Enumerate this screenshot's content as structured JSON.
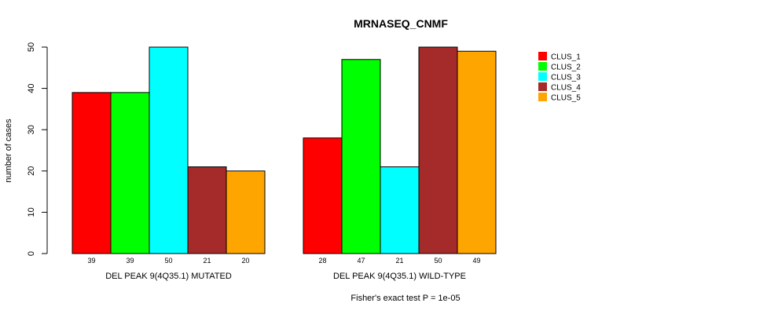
{
  "chart_data": {
    "type": "bar",
    "title": "MRNASEQ_CNMF",
    "ylabel": "number of cases",
    "xlabel": "",
    "ylim": [
      0,
      50
    ],
    "yticks": [
      0,
      10,
      20,
      30,
      40,
      50
    ],
    "footnote": "Fisher's exact test P = 1e-05",
    "series_names": [
      "CLUS_1",
      "CLUS_2",
      "CLUS_3",
      "CLUS_4",
      "CLUS_5"
    ],
    "colors": [
      "#ff0000",
      "#00ff00",
      "#00ffff",
      "#a52a2a",
      "#ffa500"
    ],
    "groups": [
      {
        "label": "DEL PEAK  9(4Q35.1) MUTATED",
        "values": [
          39,
          39,
          50,
          21,
          20
        ]
      },
      {
        "label": "DEL PEAK  9(4Q35.1) WILD-TYPE",
        "values": [
          28,
          47,
          21,
          50,
          49
        ]
      }
    ],
    "legend_position": "top-right"
  }
}
